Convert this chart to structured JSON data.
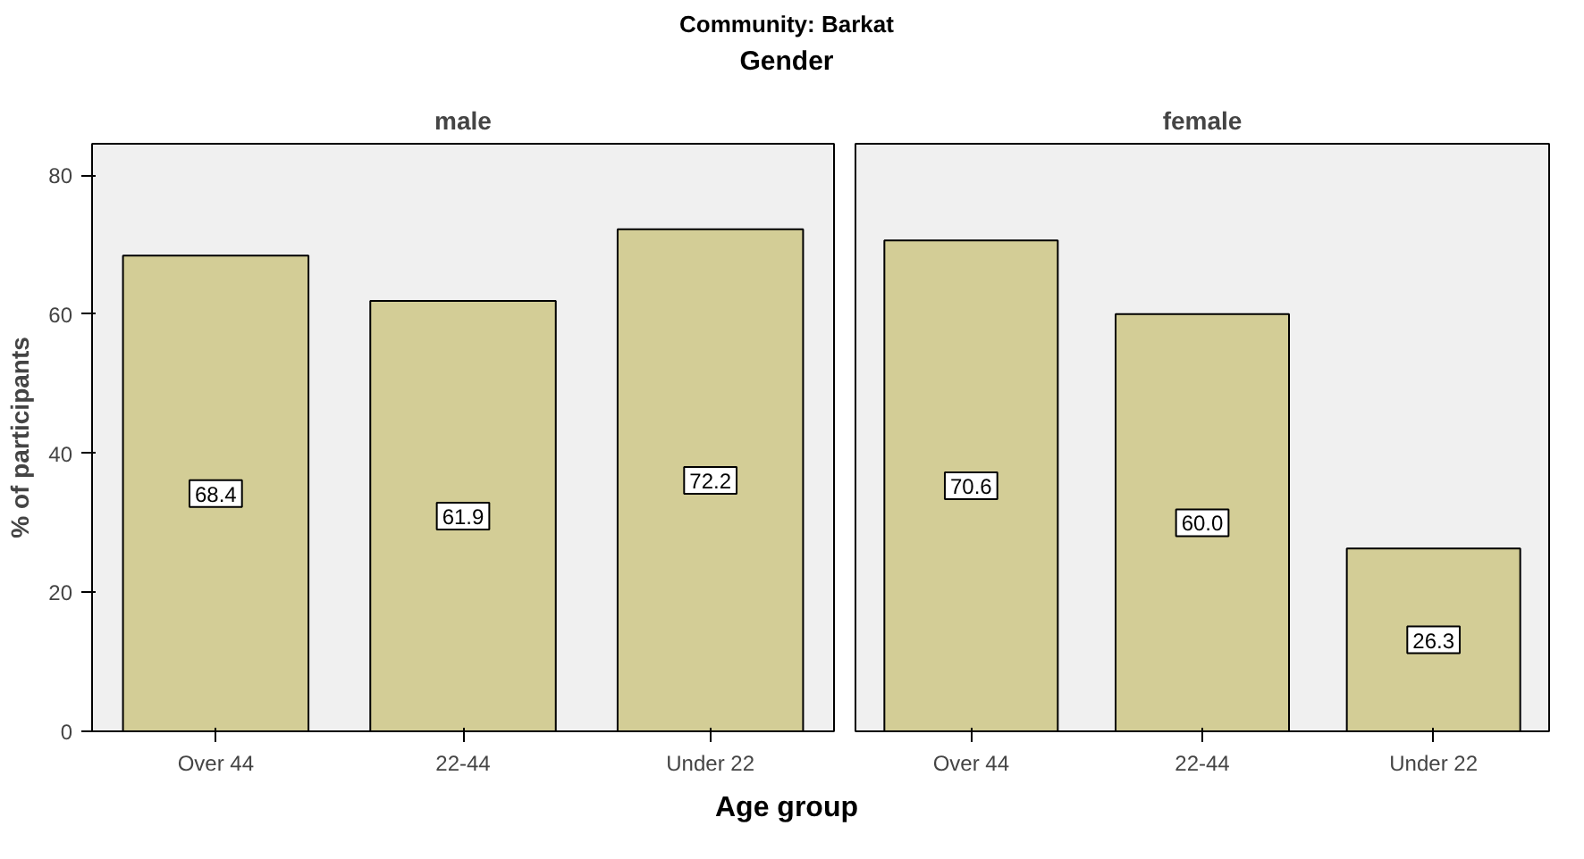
{
  "chart_data": [
    {
      "type": "bar",
      "title": "male",
      "annotations": [
        "Community: Barkat",
        "Gender"
      ],
      "xlabel": "Age group",
      "ylabel": "% of participants",
      "categories": [
        "Over 44",
        "22-44",
        "Under 22"
      ],
      "values": [
        68.4,
        61.9,
        72.2
      ],
      "value_labels": [
        "68.4",
        "61.9",
        "72.2"
      ],
      "color": "#d3cd96",
      "ylim": [
        0,
        84.5
      ],
      "yticks": [
        0,
        20,
        40,
        60,
        80
      ]
    },
    {
      "type": "bar",
      "title": "female",
      "categories": [
        "Over 44",
        "22-44",
        "Under 22"
      ],
      "values": [
        70.6,
        60.0,
        26.3
      ],
      "value_labels": [
        "70.6",
        "60.0",
        "26.3"
      ],
      "color": "#d3cd96",
      "ylim": [
        0,
        84.5
      ],
      "yticks": [
        0,
        20,
        40,
        60,
        80
      ],
      "tick_labels": "x"
    }
  ]
}
